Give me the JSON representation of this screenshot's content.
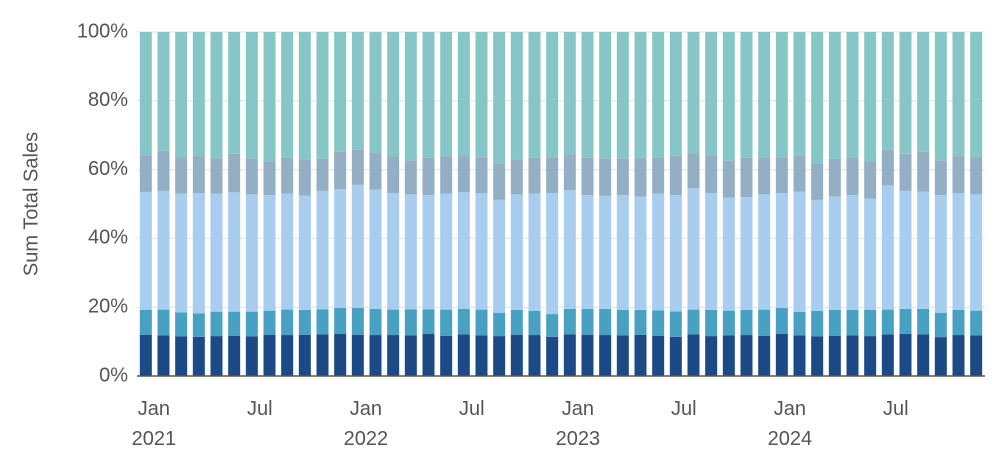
{
  "chart_data": {
    "type": "stacked_bar_percent",
    "y_label": "Sum Total Sales",
    "categories": [
      "Jan 2021",
      null,
      null,
      null,
      null,
      null,
      "Jul",
      null,
      null,
      null,
      null,
      null,
      "Jan 2022",
      null,
      null,
      null,
      null,
      null,
      "Jul",
      null,
      null,
      null,
      null,
      null,
      "Jan 2023",
      null,
      null,
      null,
      null,
      null,
      "Jul",
      null,
      null,
      null,
      null,
      null,
      "Jan 2024",
      null,
      null,
      null,
      null,
      null,
      "Jul",
      null,
      null,
      null,
      null,
      null
    ],
    "series": [
      {
        "color": "#1b4a86",
        "values": [
          12,
          11.8,
          11.5,
          11.4,
          11.6,
          11.7,
          11.5,
          12,
          11.9,
          12,
          12.1,
          12.2,
          12,
          11.9,
          11.9,
          11.8,
          12.2,
          11.7,
          12.1,
          11.8,
          11.6,
          12,
          11.9,
          11.4,
          12.1,
          12,
          11.9,
          11.8,
          12,
          11.7,
          11.4,
          12.1,
          11.6,
          11.8,
          11.9,
          11.7,
          12.2,
          11.8,
          11.5,
          11.7,
          11.8,
          11.6,
          12.1,
          12.2,
          12.1,
          11.3,
          11.9,
          11.8
        ]
      },
      {
        "color": "#48a0c2",
        "values": [
          7.2,
          7.5,
          7,
          6.8,
          7.1,
          7,
          7.2,
          7,
          7.4,
          7.2,
          7.3,
          7.6,
          7.8,
          7.6,
          7.4,
          7.6,
          7.2,
          7.6,
          7.4,
          7.5,
          6.8,
          7.2,
          7,
          6.6,
          7.4,
          7.5,
          7.6,
          7.4,
          7.2,
          7.4,
          7.4,
          7.2,
          7.6,
          7.2,
          7.3,
          7.6,
          7.6,
          6.8,
          7.4,
          7.5,
          7.4,
          7.6,
          7.2,
          7.3,
          7.4,
          7.1,
          7.3,
          7.2
        ]
      },
      {
        "color": "#a8cdee",
        "values": [
          34.3,
          34.5,
          34.5,
          35,
          34.3,
          34.7,
          34.1,
          33.6,
          33.7,
          33.2,
          34.4,
          34.5,
          35.8,
          34.7,
          33.9,
          33.4,
          33.2,
          33.7,
          33.9,
          33.9,
          32.8,
          33.6,
          34.1,
          35.2,
          34.5,
          33.1,
          32.9,
          33.4,
          33,
          33.9,
          33.8,
          35.3,
          34,
          32.8,
          32.8,
          33.5,
          33.4,
          35,
          32.3,
          33,
          33.4,
          32.4,
          36.1,
          34.3,
          34.1,
          34.2,
          34,
          33.8
        ]
      },
      {
        "color": "#94aec4",
        "values": [
          10.7,
          11.7,
          10.5,
          10.6,
          10.2,
          11.2,
          10.4,
          9.6,
          10.4,
          10.6,
          9.4,
          10.9,
          10.2,
          10.8,
          10.6,
          9.8,
          10.8,
          10.8,
          10.4,
          10.4,
          10.6,
          10,
          10.4,
          10.4,
          10.4,
          10.8,
          10.8,
          10.6,
          11.2,
          10.6,
          11.4,
          10.2,
          11,
          10.8,
          11.4,
          10.8,
          10.4,
          10.6,
          10.6,
          11,
          11,
          10.6,
          10.4,
          10.8,
          11.6,
          10,
          10.6,
          10.7
        ]
      },
      {
        "color": "#86c6c6",
        "values": [
          35.8,
          34.5,
          36.5,
          36.2,
          36.8,
          35.4,
          36.8,
          37.8,
          36.6,
          37,
          36.8,
          34.8,
          34.2,
          35,
          36.2,
          37.4,
          36.6,
          36.2,
          36.2,
          36.4,
          38.2,
          37.2,
          36.6,
          36.4,
          35.6,
          36.6,
          36.8,
          36.8,
          36.6,
          36.4,
          36,
          35.2,
          35.8,
          37.4,
          36.6,
          36.4,
          36.4,
          35.8,
          38.2,
          36.8,
          36.4,
          37.8,
          34.2,
          35.4,
          34.8,
          37.4,
          36.2,
          36.5
        ]
      }
    ],
    "ylim": [
      0,
      100
    ],
    "yticks": [
      {
        "value": 0,
        "label": "0%"
      },
      {
        "value": 20,
        "label": "20%"
      },
      {
        "value": 40,
        "label": "40%"
      },
      {
        "value": 60,
        "label": "60%"
      },
      {
        "value": 80,
        "label": "80%"
      },
      {
        "value": 100,
        "label": "100%"
      }
    ],
    "grid": true
  }
}
